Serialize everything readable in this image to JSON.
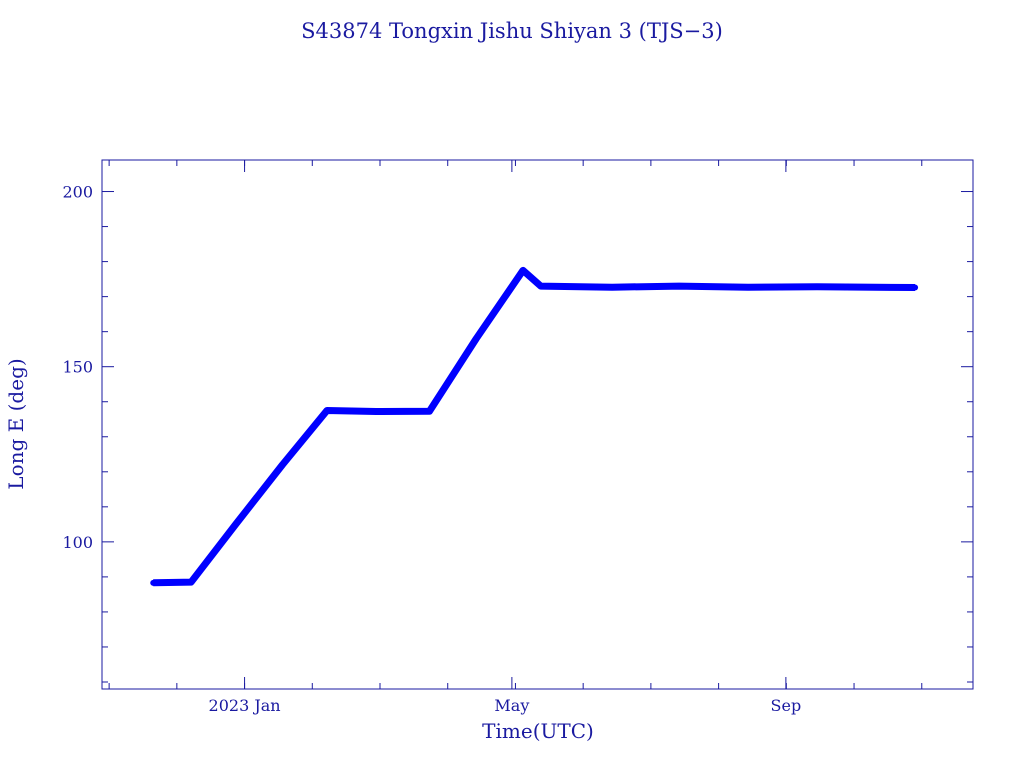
{
  "chart_data": {
    "type": "line",
    "title": "S43874 Tongxin Jishu Shiyan 3  (TJS−3)",
    "xlabel": "Time(UTC)",
    "ylabel": "Long E (deg)",
    "x_tick_labels": [
      {
        "date": "2023-01-01",
        "label": "2023 Jan"
      },
      {
        "date": "2023-05-01",
        "label": "May"
      },
      {
        "date": "2023-09-01",
        "label": "Sep"
      }
    ],
    "y_tick_labels": [
      {
        "value": 100,
        "label": "100"
      },
      {
        "value": 150,
        "label": "150"
      },
      {
        "value": 200,
        "label": "200"
      }
    ],
    "xlim": [
      "2022-10-29",
      "2023-11-24"
    ],
    "ylim": [
      58,
      209
    ],
    "series": [
      {
        "color": "#0000ff",
        "points": [
          {
            "x": "2022-11-21",
            "y": 88.3
          },
          {
            "x": "2022-12-08",
            "y": 88.5
          },
          {
            "x": "2022-12-28",
            "y": 105
          },
          {
            "x": "2023-01-18",
            "y": 122
          },
          {
            "x": "2023-02-07",
            "y": 137.5
          },
          {
            "x": "2023-03-01",
            "y": 137.2
          },
          {
            "x": "2023-03-25",
            "y": 137.3
          },
          {
            "x": "2023-04-15",
            "y": 158
          },
          {
            "x": "2023-05-06",
            "y": 177.5
          },
          {
            "x": "2023-05-14",
            "y": 173.0
          },
          {
            "x": "2023-06-15",
            "y": 172.7
          },
          {
            "x": "2023-07-15",
            "y": 173.0
          },
          {
            "x": "2023-08-15",
            "y": 172.7
          },
          {
            "x": "2023-09-15",
            "y": 172.8
          },
          {
            "x": "2023-10-29",
            "y": 172.6
          }
        ]
      }
    ]
  }
}
